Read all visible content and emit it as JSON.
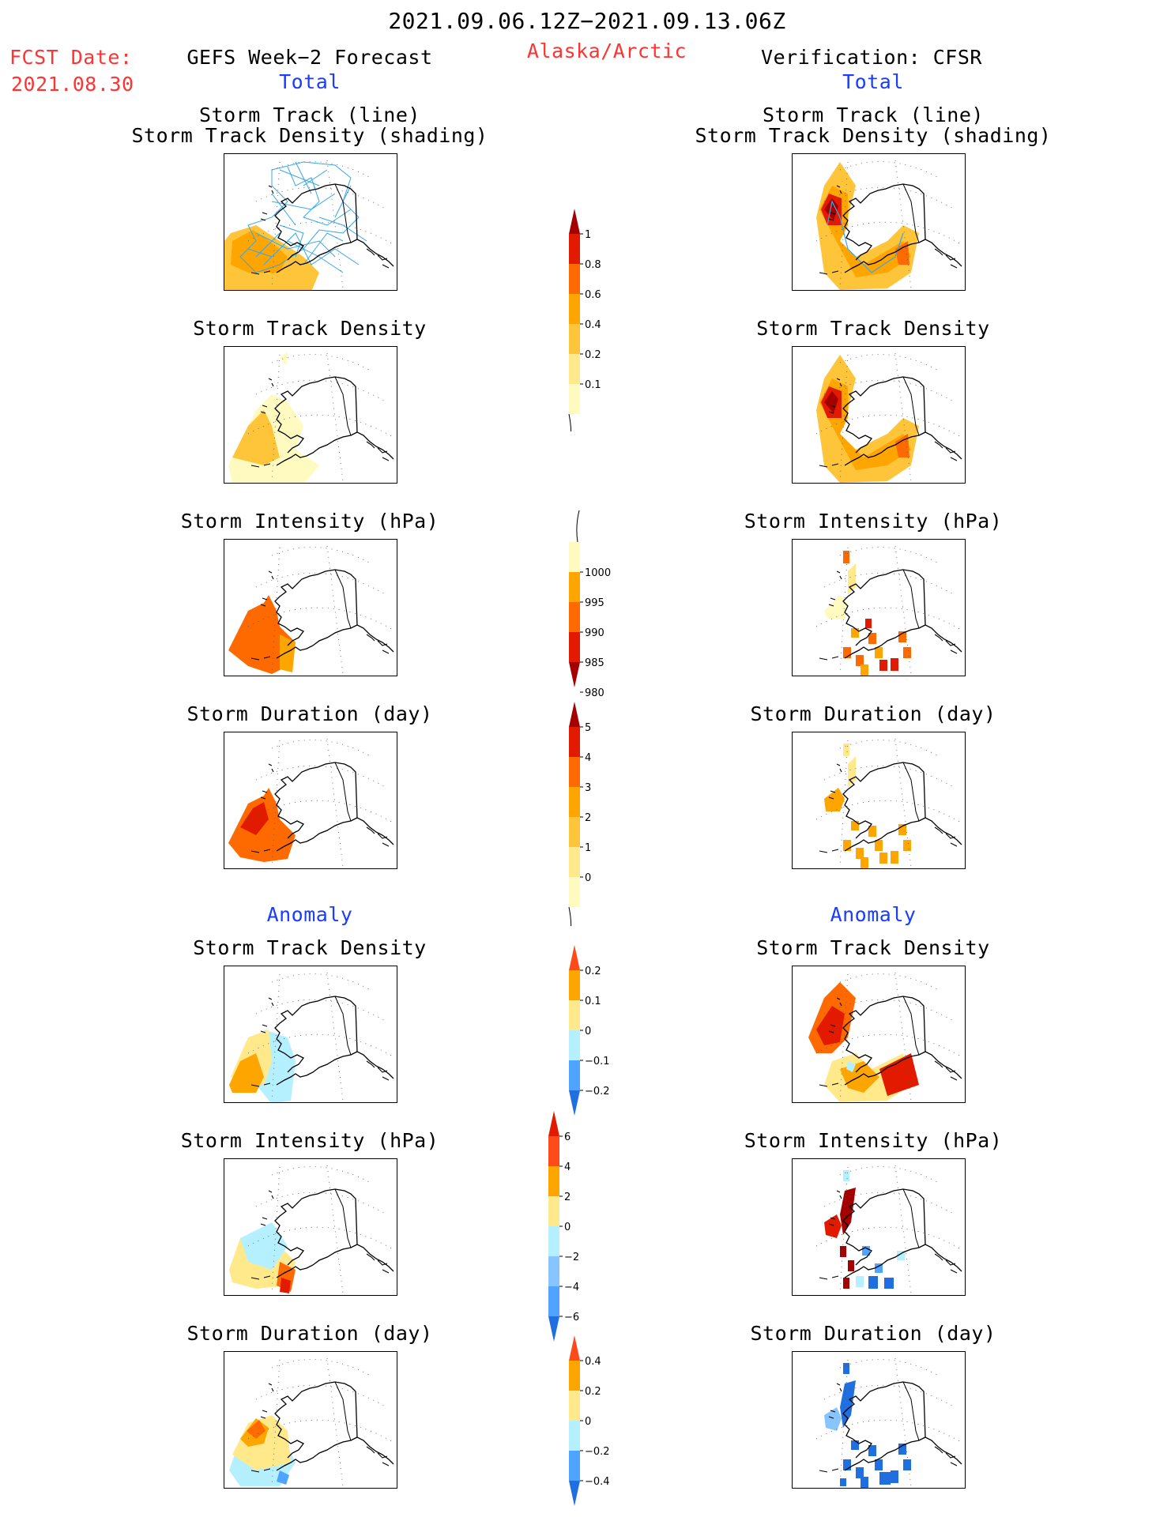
{
  "header": {
    "date_range": "2021.09.06.12Z−2021.09.13.06Z",
    "fcst_label": "FCST Date:",
    "fcst_date": "2021.08.30",
    "left_title": "GEFS Week−2 Forecast",
    "region": "Alaska/Arctic",
    "right_title": "Verification: CFSR",
    "left_section": "Total",
    "right_section": "Total"
  },
  "total_titles": {
    "track_line": "Storm Track (line)",
    "track_density_shading": "Storm Track Density (shading)",
    "track_density": "Storm Track Density",
    "intensity": "Storm Intensity (hPa)",
    "duration": "Storm Duration (day)"
  },
  "anomaly": {
    "left_label": "Anomaly",
    "right_label": "Anomaly",
    "track_density": "Storm Track Density",
    "intensity": "Storm Intensity (hPa)",
    "duration": "Storm Duration (day)"
  },
  "colorbars": {
    "density": {
      "labels": [
        "1",
        "0.8",
        "0.6",
        "0.4",
        "0.2",
        "0.1"
      ],
      "colors": [
        "#a50000",
        "#e21b00",
        "#ff6a00",
        "#ffa500",
        "#ffc53a",
        "#ffe98a",
        "#fffbc0"
      ]
    },
    "intensity": {
      "labels": [
        "1000",
        "995",
        "990",
        "985",
        "980"
      ],
      "colors": [
        "#fffbc0",
        "#ffa500",
        "#ff6a00",
        "#e21b00",
        "#a50000"
      ]
    },
    "duration": {
      "labels": [
        "5",
        "4",
        "3",
        "2",
        "1",
        "0"
      ],
      "colors": [
        "#a50000",
        "#e21b00",
        "#ff6a00",
        "#ffa500",
        "#ffc53a",
        "#ffe98a",
        "#fffbc0"
      ]
    },
    "anom_density": {
      "labels": [
        "0.2",
        "0.1",
        "0",
        "−0.1",
        "−0.2"
      ],
      "colors": [
        "#ff4a1a",
        "#ffa500",
        "#ffe98a",
        "#b4f0ff",
        "#4fa4ff",
        "#1f6fe0"
      ]
    },
    "anom_intensity": {
      "labels": [
        "6",
        "4",
        "2",
        "0",
        "−2",
        "−4",
        "−6"
      ],
      "colors": [
        "#e21b00",
        "#ff4a1a",
        "#ffa500",
        "#ffe98a",
        "#b4f0ff",
        "#88c4ff",
        "#4fa4ff",
        "#1f6fe0"
      ]
    },
    "anom_duration": {
      "labels": [
        "0.4",
        "0.2",
        "0",
        "−0.2",
        "−0.4"
      ],
      "colors": [
        "#ff4a1a",
        "#ffa500",
        "#ffe98a",
        "#b4f0ff",
        "#4fa4ff",
        "#1f6fe0"
      ]
    }
  },
  "colors": {
    "dark_red": "#a50000",
    "red": "#e21b00",
    "orange_red": "#ff6a00",
    "orange": "#ffa500",
    "light_orange": "#ffc53a",
    "pale_yellow": "#fffbc0",
    "light_blue": "#b4f0ff",
    "blue": "#1f6fe0",
    "track_line": "#38a6e8"
  }
}
